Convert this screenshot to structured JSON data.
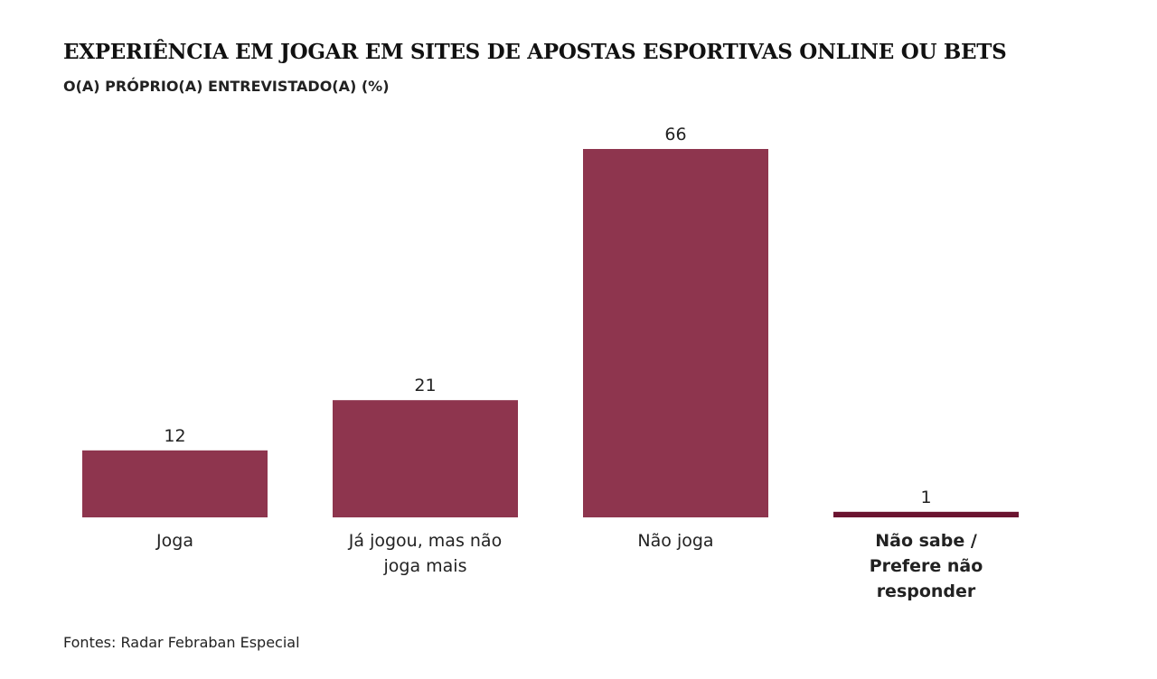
{
  "chart_data": {
    "type": "bar",
    "title": "EXPERIÊNCIA EM JOGAR EM SITES DE APOSTAS ESPORTIVAS ONLINE OU BETS",
    "subtitle": "O(A) PRÓPRIO(A) ENTREVISTADO(A) (%)",
    "categories": [
      [
        "Joga"
      ],
      [
        "Já jogou, mas não",
        "joga mais"
      ],
      [
        "Não joga"
      ],
      [
        "Não sabe /",
        "Prefere não",
        "responder"
      ]
    ],
    "values": [
      12,
      21,
      66,
      1
    ],
    "value_labels": [
      "12",
      "21",
      "66",
      "1"
    ],
    "colors": [
      "#8e354e",
      "#8e354e",
      "#8e354e",
      "#6b1430"
    ],
    "bold_categories": [
      false,
      false,
      false,
      true
    ],
    "xlabel": "",
    "ylabel": "",
    "ylim": [
      0,
      66
    ],
    "grid": false
  },
  "source": "Fontes: Radar Febraban Especial"
}
